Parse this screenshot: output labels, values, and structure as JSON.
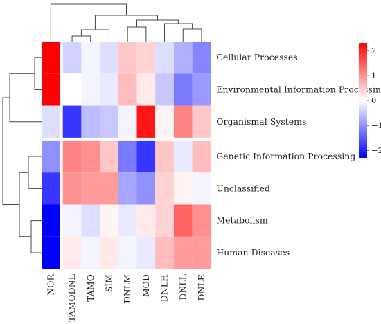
{
  "chart_data": {
    "type": "heatmap",
    "title": "",
    "columns": [
      "NOR",
      "TAMODNL",
      "TAMO",
      "SIM",
      "DNLM",
      "MOD",
      "DNLH",
      "DNLL",
      "DNLE"
    ],
    "rows": [
      "Cellular Processes",
      "Environmental Information Processing",
      "Organismal Systems",
      "Genetic Information Processing",
      "Unclassified",
      "Metabolism",
      "Human Diseases"
    ],
    "values": [
      [
        2.3,
        -0.4,
        -0.1,
        -0.3,
        0.5,
        0.4,
        -0.3,
        -0.7,
        -1.1
      ],
      [
        2.3,
        0.0,
        -0.1,
        -0.2,
        0.6,
        0.2,
        -0.5,
        -1.2,
        -0.9
      ],
      [
        -0.3,
        -1.8,
        -0.6,
        -0.5,
        -0.1,
        2.1,
        0.1,
        1.1,
        0.5
      ],
      [
        -1.0,
        1.1,
        1.0,
        0.5,
        -1.2,
        -1.8,
        0.5,
        -0.2,
        0.6
      ],
      [
        -1.8,
        1.0,
        0.9,
        0.9,
        -0.8,
        -1.0,
        0.4,
        0.1,
        -0.1
      ],
      [
        -2.3,
        -0.1,
        -0.3,
        0.1,
        -0.2,
        0.2,
        0.4,
        1.4,
        1.0
      ],
      [
        -2.3,
        0.2,
        -0.1,
        0.2,
        -0.1,
        -0.2,
        0.6,
        0.9,
        0.9
      ]
    ],
    "row_groups": [
      3,
      4
    ],
    "column_groups": [
      1,
      8
    ],
    "color_scale": {
      "min": -2.3,
      "max": 2.3,
      "low_color": "#0000ff",
      "mid_color": "#ffffff",
      "high_color": "#ff0000",
      "ticks": [
        2,
        1,
        0,
        -1,
        -2
      ]
    },
    "dendrogram_columns": true,
    "dendrogram_rows": true
  }
}
